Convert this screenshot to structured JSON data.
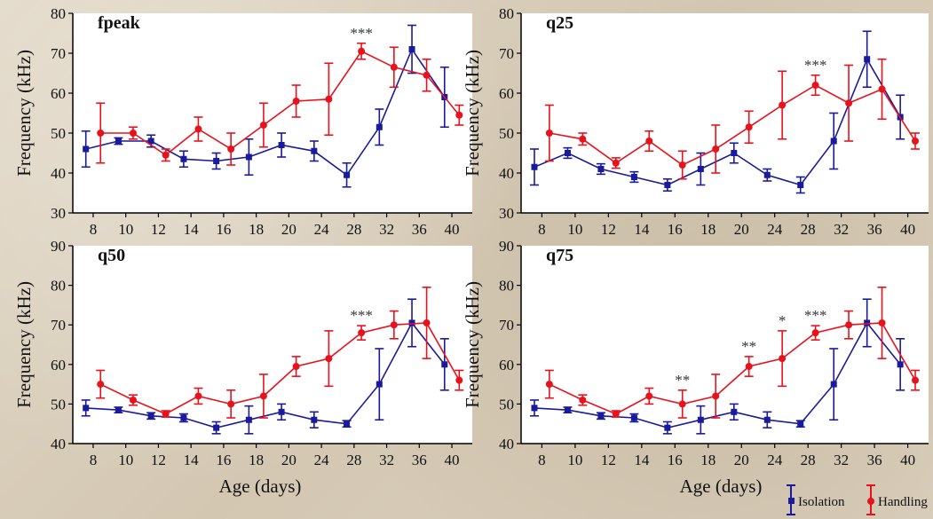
{
  "colors": {
    "isolation": "#1a1a9c",
    "handling": "#e8121c",
    "axis": "#000000",
    "background": "#ffffff"
  },
  "x_tick_labels": [
    "8",
    "10",
    "12",
    "14",
    "16",
    "18",
    "20",
    "24",
    "28",
    "32",
    "36",
    "40"
  ],
  "xlabel": "Age (days)",
  "ylabel": "Frequency (kHz)",
  "legend": {
    "isolation": "Isolation",
    "handling": "Handling",
    "placement": "bottom-right"
  },
  "chart_data": [
    {
      "type": "line",
      "title": "fpeak",
      "ylim": [
        30,
        80
      ],
      "yticks": [
        30,
        40,
        50,
        60,
        70,
        80
      ],
      "series": [
        {
          "name": "Isolation",
          "marker": "square",
          "x": [
            7.3,
            9.3,
            11.3,
            13.3,
            15.3,
            17.3,
            19.3,
            21.3,
            23.3,
            25.3,
            27.3,
            29.3
          ],
          "y": [
            46,
            48,
            48,
            43.5,
            43,
            44,
            47,
            45.5,
            39.5,
            51.5,
            71,
            59
          ],
          "err": [
            4.5,
            0.8,
            1.5,
            2,
            2,
            4.5,
            3,
            2.5,
            3,
            4.5,
            6,
            7.5
          ]
        },
        {
          "name": "Handling",
          "marker": "circle",
          "x": [
            8.2,
            10.2,
            12.2,
            14.2,
            16.2,
            18.2,
            20.2,
            22.2,
            24.2,
            26.2,
            28.2,
            30.2
          ],
          "y": [
            50,
            50,
            44.5,
            51,
            46,
            52,
            58,
            58.5,
            70.5,
            66.5,
            64.5,
            54.5
          ],
          "err": [
            7.5,
            1.5,
            1.5,
            3,
            4,
            5.5,
            4,
            9,
            2,
            5,
            4,
            2.5
          ]
        }
      ],
      "annotations": [
        {
          "text": "***",
          "x": 24.2
        }
      ]
    },
    {
      "type": "line",
      "title": "q25",
      "ylim": [
        30,
        80
      ],
      "yticks": [
        30,
        40,
        50,
        60,
        70,
        80
      ],
      "series": [
        {
          "name": "Isolation",
          "marker": "square",
          "x": [
            7.3,
            9.3,
            11.3,
            13.3,
            15.3,
            17.3,
            19.3,
            21.3,
            23.3,
            25.3,
            27.3,
            29.3
          ],
          "y": [
            41.5,
            45,
            41,
            39,
            37,
            41,
            45,
            39.5,
            37,
            48,
            68.5,
            54
          ],
          "err": [
            4.5,
            1.3,
            1.3,
            1.3,
            1.5,
            4,
            2.5,
            1.5,
            2,
            7,
            7,
            5.5
          ]
        },
        {
          "name": "Handling",
          "marker": "circle",
          "x": [
            8.2,
            10.2,
            12.2,
            14.2,
            16.2,
            18.2,
            20.2,
            22.2,
            24.2,
            26.2,
            28.2,
            30.2
          ],
          "y": [
            50,
            48.5,
            42.5,
            48,
            42,
            46,
            51.5,
            57,
            62,
            57.5,
            61,
            48
          ],
          "err": [
            7,
            1.5,
            1.3,
            2.5,
            3.5,
            6,
            4,
            8.5,
            2.5,
            9.5,
            7.5,
            2
          ]
        }
      ],
      "annotations": [
        {
          "text": "***",
          "x": 24.2
        }
      ]
    },
    {
      "type": "line",
      "title": "q50",
      "ylim": [
        40,
        90
      ],
      "yticks": [
        40,
        50,
        60,
        70,
        80,
        90
      ],
      "series": [
        {
          "name": "Isolation",
          "marker": "square",
          "x": [
            7.3,
            9.3,
            11.3,
            13.3,
            15.3,
            17.3,
            19.3,
            21.3,
            23.3,
            25.3,
            27.3,
            29.3
          ],
          "y": [
            49,
            48.5,
            47,
            46.5,
            44,
            46,
            48,
            46,
            45,
            55,
            70.5,
            60
          ],
          "err": [
            2,
            0.7,
            0.8,
            1,
            1.5,
            3.5,
            2,
            2,
            0.8,
            9,
            6,
            6.5
          ]
        },
        {
          "name": "Handling",
          "marker": "circle",
          "x": [
            8.2,
            10.2,
            12.2,
            14.2,
            16.2,
            18.2,
            20.2,
            22.2,
            24.2,
            26.2,
            28.2,
            30.2
          ],
          "y": [
            55,
            51,
            47.5,
            52,
            50,
            52,
            59.5,
            61.5,
            68,
            70,
            70.5,
            56
          ],
          "err": [
            3.5,
            1.3,
            0.8,
            2,
            3.5,
            5.5,
            2.5,
            7,
            1.8,
            3.5,
            9,
            2.5
          ]
        }
      ],
      "annotations": [
        {
          "text": "***",
          "x": 24.2
        }
      ]
    },
    {
      "type": "line",
      "title": "q75",
      "ylim": [
        40,
        90
      ],
      "yticks": [
        40,
        50,
        60,
        70,
        80,
        90
      ],
      "series": [
        {
          "name": "Isolation",
          "marker": "square",
          "x": [
            7.3,
            9.3,
            11.3,
            13.3,
            15.3,
            17.3,
            19.3,
            21.3,
            23.3,
            25.3,
            27.3,
            29.3
          ],
          "y": [
            49,
            48.5,
            47,
            46.5,
            44,
            46,
            48,
            46,
            45,
            55,
            70.5,
            60
          ],
          "err": [
            2,
            0.7,
            0.8,
            1,
            1.5,
            3.5,
            2,
            2,
            0.8,
            9,
            6,
            6.5
          ]
        },
        {
          "name": "Handling",
          "marker": "circle",
          "x": [
            8.2,
            10.2,
            12.2,
            14.2,
            16.2,
            18.2,
            20.2,
            22.2,
            24.2,
            26.2,
            28.2,
            30.2
          ],
          "y": [
            55,
            51,
            47.5,
            52,
            50,
            52,
            59.5,
            61.5,
            68,
            70,
            70.5,
            56
          ],
          "err": [
            3.5,
            1.3,
            0.8,
            2,
            3.5,
            5.5,
            2.5,
            7,
            1.8,
            3.5,
            9,
            2.5
          ]
        }
      ],
      "annotations": [
        {
          "text": "**",
          "x": 16.2
        },
        {
          "text": "**",
          "x": 20.2
        },
        {
          "text": "*",
          "x": 22.2
        },
        {
          "text": "***",
          "x": 24.2
        }
      ]
    }
  ]
}
